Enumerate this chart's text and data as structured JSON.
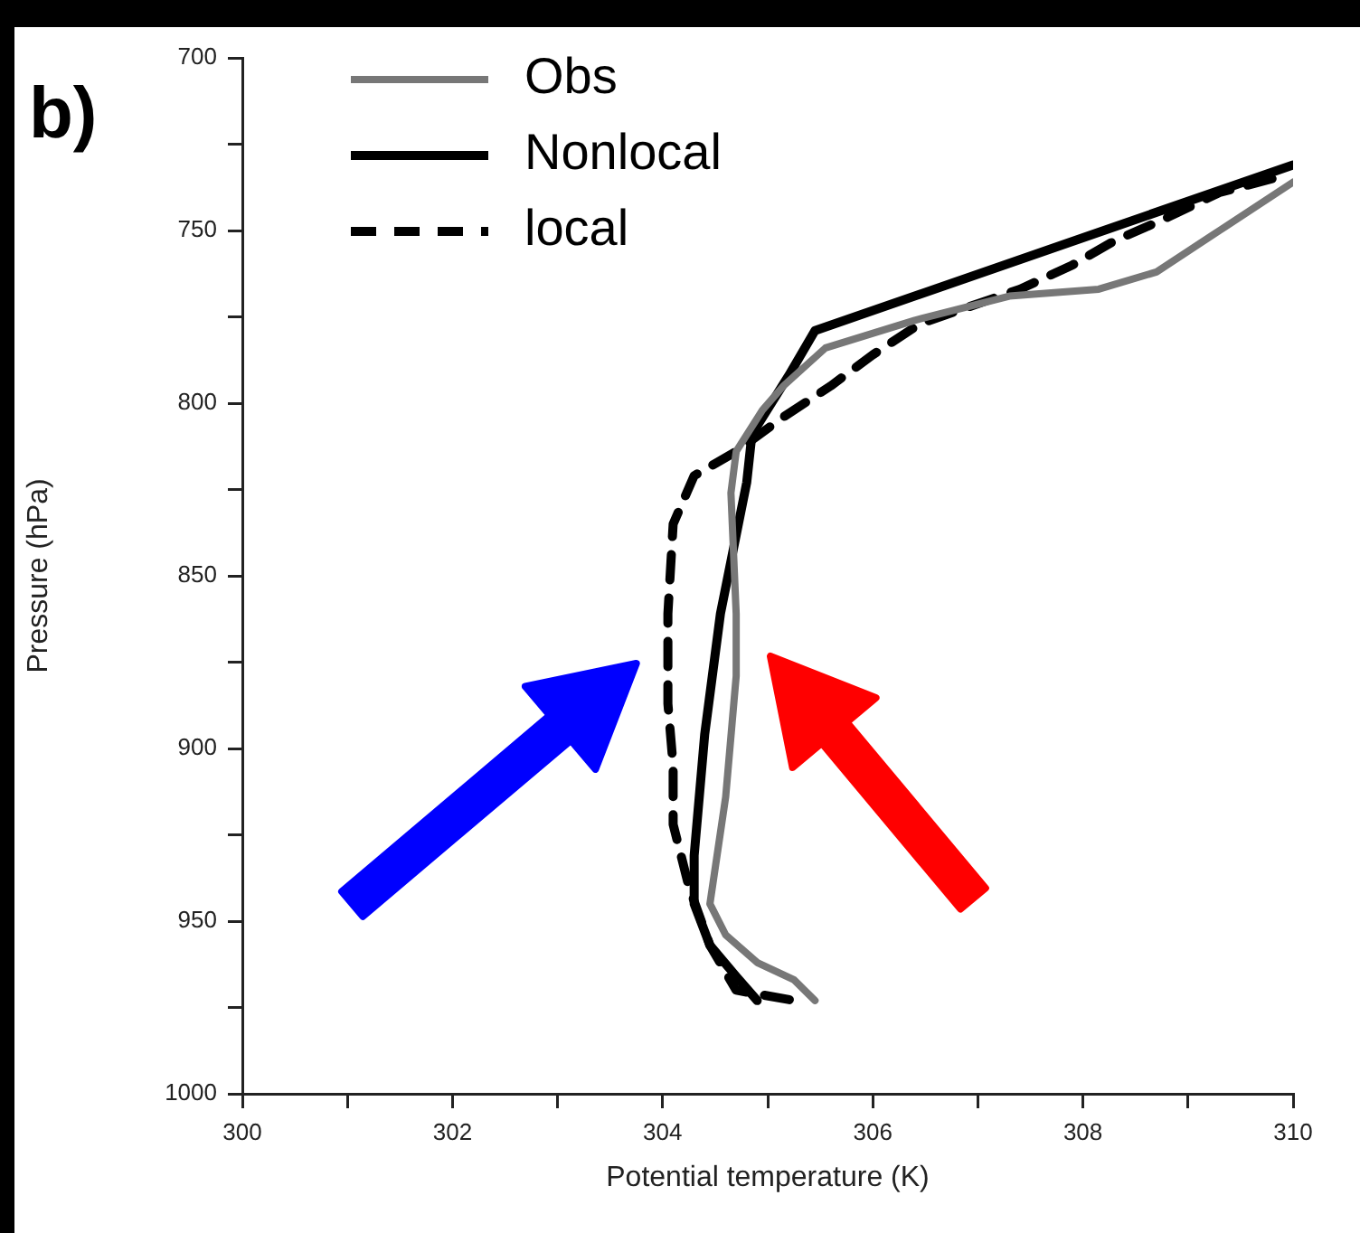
{
  "chart_data": {
    "type": "line",
    "xlabel": "Potential temperature (K)",
    "ylabel": "Pressure (hPa)",
    "annotations": [
      "b)"
    ],
    "xlim": [
      300,
      310
    ],
    "xticks": [
      300,
      {
        "value": 301,
        "label": null
      },
      302,
      {
        "value": 303,
        "label": null
      },
      304,
      {
        "value": 305,
        "label": null
      },
      306,
      {
        "value": 307,
        "label": null
      },
      308,
      {
        "value": 309,
        "label": null
      },
      310
    ],
    "ylim": [
      1000,
      700
    ],
    "yticks": [
      700,
      {
        "value": 725,
        "label": null
      },
      750,
      {
        "value": 775,
        "label": null
      },
      800,
      {
        "value": 825,
        "label": null
      },
      850,
      {
        "value": 875,
        "label": null
      },
      900,
      {
        "value": 925,
        "label": null
      },
      950,
      {
        "value": 975,
        "label": null
      },
      1000
    ],
    "grid": false,
    "legend": "top left",
    "marker": "none",
    "series": [
      {
        "name": "Obs",
        "color": "#777777",
        "line_style": "solid",
        "x": [
          310,
          309.3,
          308.7,
          308.15,
          307.3,
          306.4,
          305.55,
          305.15,
          304.95,
          304.7,
          304.65,
          304.7,
          304.7,
          304.6,
          304.45,
          304.6,
          304.9,
          305.25,
          305.45
        ],
        "values": [
          736,
          750,
          762,
          767,
          769,
          776,
          784,
          795,
          802,
          814,
          826,
          861,
          879,
          914,
          945,
          954,
          962,
          967,
          973
        ]
      },
      {
        "name": "Nonlocal",
        "color": "#000000",
        "line_style": "solid",
        "x": [
          310,
          305.45,
          305.2,
          304.85,
          304.8,
          304.55,
          304.4,
          304.3,
          304.3,
          304.45,
          304.7,
          304.9
        ],
        "values": [
          731,
          779,
          792,
          809,
          823,
          861,
          896,
          931,
          945,
          957,
          966,
          973
        ]
      },
      {
        "name": "local",
        "color": "#000000",
        "line_style": "dashed",
        "x": [
          309.8,
          309.3,
          308.75,
          308.3,
          307.9,
          307.4,
          306.45,
          306,
          305.6,
          305.15,
          304.7,
          304.3,
          304.1,
          304.05,
          304.05,
          304.1,
          304.1,
          304.25,
          304.45,
          304.7,
          305.25
        ],
        "values": [
          735,
          739,
          747,
          753,
          760,
          767,
          777,
          786,
          795,
          804,
          814,
          821,
          835,
          861,
          887,
          905,
          922,
          940,
          957,
          970,
          973
        ]
      }
    ]
  }
}
